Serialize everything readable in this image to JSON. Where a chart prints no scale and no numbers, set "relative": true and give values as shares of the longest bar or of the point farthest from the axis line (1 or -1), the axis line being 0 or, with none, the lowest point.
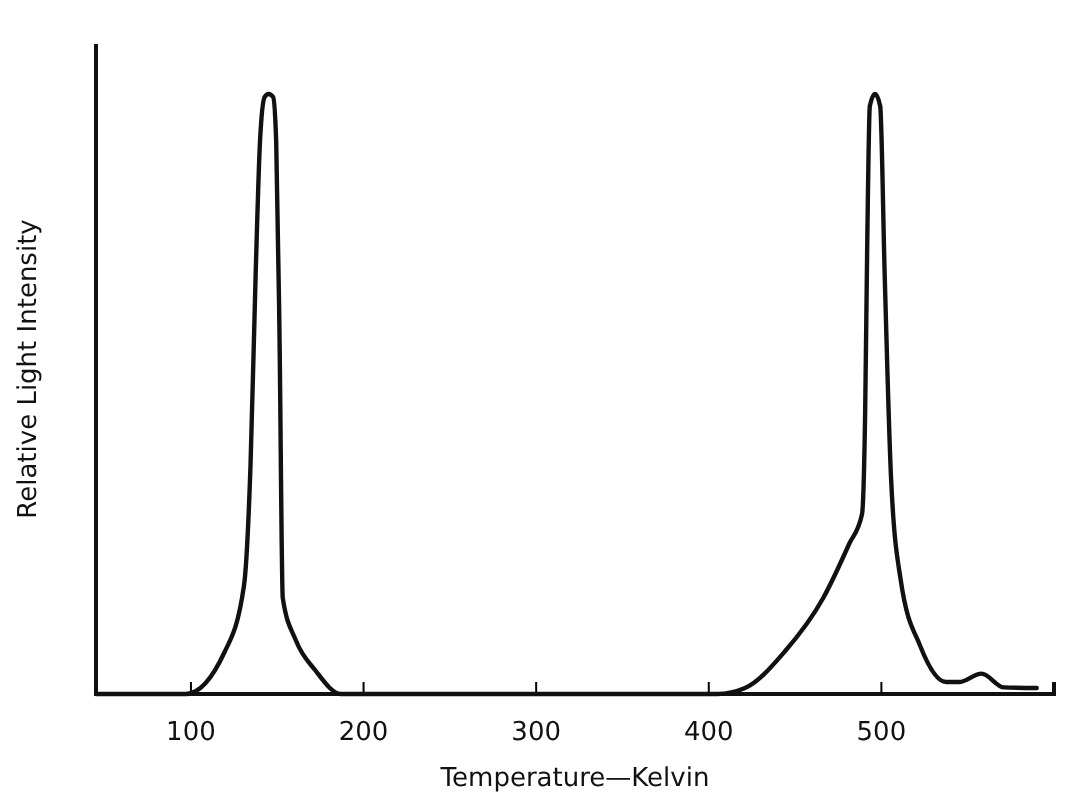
{
  "chart_data": {
    "type": "line",
    "relative": true,
    "xlabel": "Temperature—Kelvin",
    "ylabel": "Relative Light Intensity",
    "xlim": [
      45,
      600
    ],
    "xticks": [
      100,
      200,
      300,
      400,
      500
    ],
    "marker": "none",
    "line_style": "solid",
    "series": [
      {
        "color": "#111111",
        "x": [
          45,
          97,
          119.5,
          130.7,
          134.5,
          137.5,
          140,
          142.7,
          145,
          147.6,
          149.4,
          151.3,
          153.2,
          160.7,
          171.9,
          186.9,
          300,
          405,
          421,
          443.8,
          466.3,
          481.3,
          488.8,
          490.6,
          491.8,
          493.3,
          496.3,
          499.3,
          501.9,
          505.6,
          511.2,
          522.5,
          537.5,
          545,
          558,
          571,
          590
        ],
        "values": [
          0,
          0,
          0.07,
          0.18,
          0.38,
          0.7,
          0.92,
          0.995,
          1,
          0.995,
          0.92,
          0.6,
          0.16,
          0.09,
          0.04,
          0,
          0,
          0,
          0.01,
          0.07,
          0.16,
          0.25,
          0.3,
          0.47,
          0.75,
          0.98,
          1,
          0.98,
          0.7,
          0.36,
          0.19,
          0.08,
          0.02,
          0.02,
          0.034,
          0.011,
          0.01
        ]
      }
    ]
  }
}
